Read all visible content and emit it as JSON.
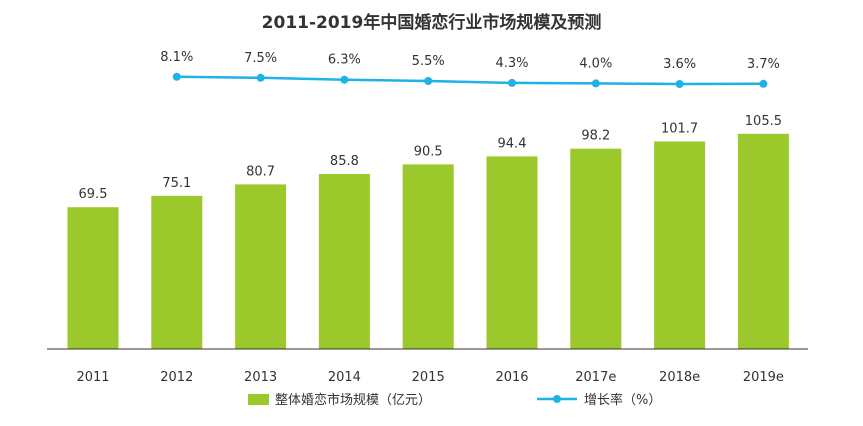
{
  "chart_data": {
    "type": "bar+line",
    "title": "2011-2019年中国婚恋行业市场规模及预测",
    "categories": [
      "2011",
      "2012",
      "2013",
      "2014",
      "2015",
      "2016",
      "2017e",
      "2018e",
      "2019e"
    ],
    "series": [
      {
        "name": "整体婚恋市场规模（亿元）",
        "type": "bar",
        "unit": "亿元",
        "values": [
          69.5,
          75.1,
          80.7,
          85.8,
          90.5,
          94.4,
          98.2,
          101.7,
          105.5
        ],
        "labels": [
          "69.5",
          "75.1",
          "80.7",
          "85.8",
          "90.5",
          "94.4",
          "98.2",
          "101.7",
          "105.5"
        ]
      },
      {
        "name": "增长率（%）",
        "type": "line",
        "unit": "%",
        "values": [
          null,
          8.1,
          7.5,
          6.3,
          5.5,
          4.3,
          4.0,
          3.6,
          3.7
        ],
        "labels": [
          null,
          "8.1%",
          "7.5%",
          "6.3%",
          "5.5%",
          "4.3%",
          "4.0%",
          "3.6%",
          "3.7%"
        ]
      }
    ],
    "ylim_bar": [
      0,
      110
    ],
    "ylim_line": [
      0,
      10
    ],
    "grid": false,
    "legend_position": "bottom",
    "colors": {
      "bar": "#9BC82B",
      "line": "#1EB2E5",
      "axis": "#333333",
      "text": "#333333"
    }
  }
}
